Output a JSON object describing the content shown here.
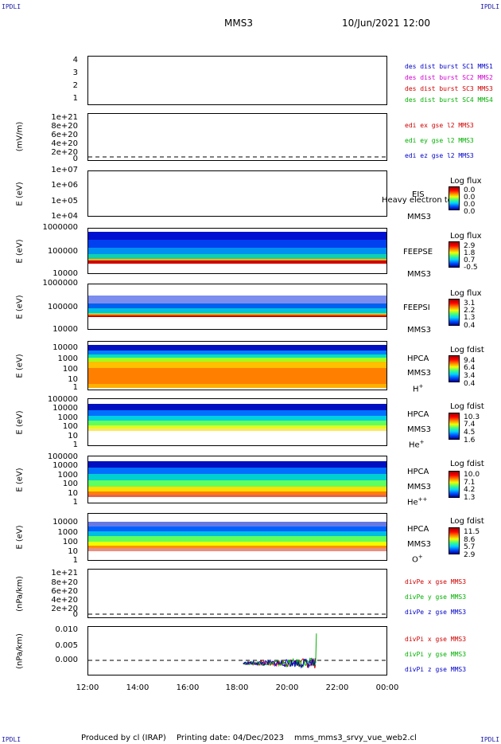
{
  "corners": {
    "tl": "IPDLI",
    "tr": "IPDLI",
    "bl": "IPDLI",
    "br": "IPDLI"
  },
  "header": {
    "spacecraft": "MMS3",
    "datetime": "10/Jun/2021 12:00"
  },
  "footer": {
    "producer": "Produced by cl (IRAP)",
    "printing": "Printing date: 04/Dec/2023",
    "script": "mms_mms3_srvy_vue_web2.cl"
  },
  "colors": {
    "blue": "#0000c8",
    "magenta": "#d000d0",
    "red": "#d00000",
    "green": "#00b000"
  },
  "chart_data": [
    {
      "type": "line",
      "title": "",
      "ylabel": "",
      "yticks": [
        "4",
        "3",
        "2",
        "1"
      ],
      "legend": [
        {
          "text": "des dist burst SC1 MMS1",
          "color": "#0000c8"
        },
        {
          "text": "des dist burst SC2 MMS2",
          "color": "#d000d0"
        },
        {
          "text": "des dist burst SC3 MMS3",
          "color": "#d00000"
        },
        {
          "text": "des dist burst SC4 MMS4",
          "color": "#00b000"
        }
      ]
    },
    {
      "type": "line",
      "ylabel": "(mV/m)",
      "yticks": [
        "1e+21",
        "8e+20",
        "6e+20",
        "4e+20",
        "2e+20",
        "0"
      ],
      "legend": [
        {
          "text": "edi ex gse l2 MMS3",
          "color": "#d00000"
        },
        {
          "text": "edi ey gse l2 MMS3",
          "color": "#00b000"
        },
        {
          "text": "edi ez gse l2 MMS3",
          "color": "#0000c8"
        }
      ]
    },
    {
      "type": "heatmap",
      "ylabel": "E (eV)",
      "yticks": [
        "1e+07",
        "1e+06",
        "1e+05",
        "1e+04"
      ],
      "instrument": "EIS",
      "overlay": "Heavy electron to",
      "sc": "MMS3",
      "cbar_title": "Log flux",
      "cbar_ticks": [
        "0.0",
        "0.0",
        "0.0",
        "0.0"
      ]
    },
    {
      "type": "heatmap",
      "ylabel": "E (eV)",
      "yticks": [
        "1000000",
        "100000",
        "10000"
      ],
      "instrument": "FEEPSE",
      "sc": "MMS3",
      "cbar_title": "Log flux",
      "cbar_ticks": [
        "2.9",
        "1.8",
        "0.7",
        "-0.5"
      ]
    },
    {
      "type": "heatmap",
      "ylabel": "E (eV)",
      "yticks": [
        "1000000",
        "100000",
        "10000"
      ],
      "instrument": "FEEPSI",
      "sc": "MMS3",
      "cbar_title": "Log flux",
      "cbar_ticks": [
        "3.1",
        "2.2",
        "1.3",
        "0.4"
      ]
    },
    {
      "type": "heatmap",
      "ylabel": "E (eV)",
      "yticks": [
        "10000",
        "1000",
        "100",
        "10",
        "1"
      ],
      "instrument": "HPCA",
      "sc": "MMS3",
      "species": "H",
      "charge": "+",
      "cbar_title": "Log fdist",
      "cbar_ticks": [
        "9.4",
        "6.4",
        "3.4",
        "0.4"
      ]
    },
    {
      "type": "heatmap",
      "ylabel": "E (eV)",
      "yticks": [
        "100000",
        "10000",
        "1000",
        "100",
        "10",
        "1"
      ],
      "instrument": "HPCA",
      "sc": "MMS3",
      "species": "He",
      "charge": "+",
      "cbar_title": "Log fdist",
      "cbar_ticks": [
        "10.3",
        "7.4",
        "4.5",
        "1.6"
      ]
    },
    {
      "type": "heatmap",
      "ylabel": "E (eV)",
      "yticks": [
        "100000",
        "10000",
        "1000",
        "100",
        "10",
        "1"
      ],
      "instrument": "HPCA",
      "sc": "MMS3",
      "species": "He",
      "charge": "++",
      "cbar_title": "Log fdist",
      "cbar_ticks": [
        "10.0",
        "7.1",
        "4.2",
        "1.3"
      ]
    },
    {
      "type": "heatmap",
      "ylabel": "E (eV)",
      "yticks": [
        "10000",
        "1000",
        "100",
        "10",
        "1"
      ],
      "instrument": "HPCA",
      "sc": "MMS3",
      "species": "O",
      "charge": "+",
      "cbar_title": "Log fdist",
      "cbar_ticks": [
        "11.5",
        "8.6",
        "5.7",
        "2.9"
      ]
    },
    {
      "type": "line",
      "ylabel": "(nPa/km)",
      "yticks": [
        "1e+21",
        "8e+20",
        "6e+20",
        "4e+20",
        "2e+20",
        "0"
      ],
      "legend": [
        {
          "text": "divPe x gse MMS3",
          "color": "#d00000"
        },
        {
          "text": "divPe y gse MMS3",
          "color": "#00b000"
        },
        {
          "text": "divPe z gse MMS3",
          "color": "#0000c8"
        }
      ]
    },
    {
      "type": "line",
      "ylabel": "(nPa/km)",
      "yticks": [
        "0.010",
        "0.005",
        "0.000"
      ],
      "ylim": [
        -0.004,
        0.011
      ],
      "legend": [
        {
          "text": "divPi x gse MMS3",
          "color": "#d00000"
        },
        {
          "text": "divPi y gse MMS3",
          "color": "#00b000"
        },
        {
          "text": "divPi z gse MMS3",
          "color": "#0000c8"
        }
      ],
      "data_span_hours": [
        18.2,
        21.1
      ],
      "spike_y": 0.009,
      "spike_x": 21.1
    },
    {
      "type": "axis",
      "xticks": [
        "12:00",
        "14:00",
        "16:00",
        "18:00",
        "20:00",
        "22:00",
        "00:00"
      ]
    }
  ]
}
